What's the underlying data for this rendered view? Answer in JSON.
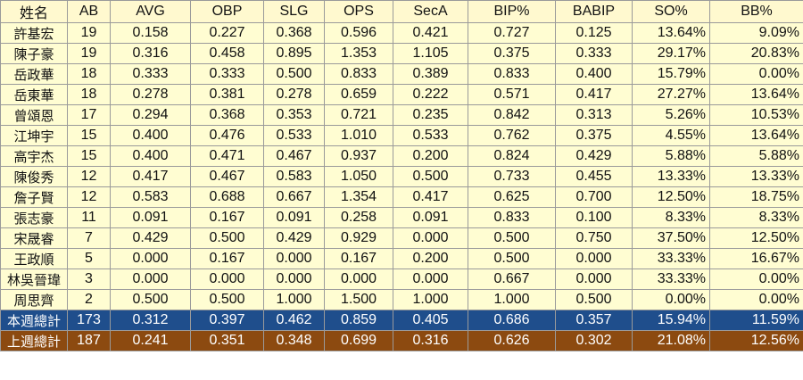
{
  "headers": [
    "姓名",
    "AB",
    "AVG",
    "OBP",
    "SLG",
    "OPS",
    "SecA",
    "BIP%",
    "BABIP",
    "SO%",
    "BB%"
  ],
  "rows": [
    {
      "name": "許基宏",
      "ab": "19",
      "avg": "0.158",
      "obp": "0.227",
      "slg": "0.368",
      "ops": "0.596",
      "seca": "0.421",
      "bip": "0.727",
      "babip": "0.125",
      "so": "13.64%",
      "bb": "9.09%"
    },
    {
      "name": "陳子豪",
      "ab": "19",
      "avg": "0.316",
      "obp": "0.458",
      "slg": "0.895",
      "ops": "1.353",
      "seca": "1.105",
      "bip": "0.375",
      "babip": "0.333",
      "so": "29.17%",
      "bb": "20.83%"
    },
    {
      "name": "岳政華",
      "ab": "18",
      "avg": "0.333",
      "obp": "0.333",
      "slg": "0.500",
      "ops": "0.833",
      "seca": "0.389",
      "bip": "0.833",
      "babip": "0.400",
      "so": "15.79%",
      "bb": "0.00%"
    },
    {
      "name": "岳東華",
      "ab": "18",
      "avg": "0.278",
      "obp": "0.381",
      "slg": "0.278",
      "ops": "0.659",
      "seca": "0.222",
      "bip": "0.571",
      "babip": "0.417",
      "so": "27.27%",
      "bb": "13.64%"
    },
    {
      "name": "曾頌恩",
      "ab": "17",
      "avg": "0.294",
      "obp": "0.368",
      "slg": "0.353",
      "ops": "0.721",
      "seca": "0.235",
      "bip": "0.842",
      "babip": "0.313",
      "so": "5.26%",
      "bb": "10.53%"
    },
    {
      "name": "江坤宇",
      "ab": "15",
      "avg": "0.400",
      "obp": "0.476",
      "slg": "0.533",
      "ops": "1.010",
      "seca": "0.533",
      "bip": "0.762",
      "babip": "0.375",
      "so": "4.55%",
      "bb": "13.64%"
    },
    {
      "name": "高宇杰",
      "ab": "15",
      "avg": "0.400",
      "obp": "0.471",
      "slg": "0.467",
      "ops": "0.937",
      "seca": "0.200",
      "bip": "0.824",
      "babip": "0.429",
      "so": "5.88%",
      "bb": "5.88%"
    },
    {
      "name": "陳俊秀",
      "ab": "12",
      "avg": "0.417",
      "obp": "0.467",
      "slg": "0.583",
      "ops": "1.050",
      "seca": "0.500",
      "bip": "0.733",
      "babip": "0.455",
      "so": "13.33%",
      "bb": "13.33%"
    },
    {
      "name": "詹子賢",
      "ab": "12",
      "avg": "0.583",
      "obp": "0.688",
      "slg": "0.667",
      "ops": "1.354",
      "seca": "0.417",
      "bip": "0.625",
      "babip": "0.700",
      "so": "12.50%",
      "bb": "18.75%"
    },
    {
      "name": "張志豪",
      "ab": "11",
      "avg": "0.091",
      "obp": "0.167",
      "slg": "0.091",
      "ops": "0.258",
      "seca": "0.091",
      "bip": "0.833",
      "babip": "0.100",
      "so": "8.33%",
      "bb": "8.33%"
    },
    {
      "name": "宋晟睿",
      "ab": "7",
      "avg": "0.429",
      "obp": "0.500",
      "slg": "0.429",
      "ops": "0.929",
      "seca": "0.000",
      "bip": "0.500",
      "babip": "0.750",
      "so": "37.50%",
      "bb": "12.50%"
    },
    {
      "name": "王政順",
      "ab": "5",
      "avg": "0.000",
      "obp": "0.167",
      "slg": "0.000",
      "ops": "0.167",
      "seca": "0.200",
      "bip": "0.500",
      "babip": "0.000",
      "so": "33.33%",
      "bb": "16.67%"
    },
    {
      "name": "林吳晉瑋",
      "ab": "3",
      "avg": "0.000",
      "obp": "0.000",
      "slg": "0.000",
      "ops": "0.000",
      "seca": "0.000",
      "bip": "0.667",
      "babip": "0.000",
      "so": "33.33%",
      "bb": "0.00%"
    },
    {
      "name": "周思齊",
      "ab": "2",
      "avg": "0.500",
      "obp": "0.500",
      "slg": "1.000",
      "ops": "1.500",
      "seca": "1.000",
      "bip": "1.000",
      "babip": "0.500",
      "so": "0.00%",
      "bb": "0.00%"
    }
  ],
  "totals": [
    {
      "name": "本週總計",
      "ab": "173",
      "avg": "0.312",
      "obp": "0.397",
      "slg": "0.462",
      "ops": "0.859",
      "seca": "0.405",
      "bip": "0.686",
      "babip": "0.357",
      "so": "15.94%",
      "bb": "11.59%"
    },
    {
      "name": "上週總計",
      "ab": "187",
      "avg": "0.241",
      "obp": "0.351",
      "slg": "0.348",
      "ops": "0.699",
      "seca": "0.316",
      "bip": "0.626",
      "babip": "0.302",
      "so": "21.08%",
      "bb": "12.56%"
    }
  ],
  "colors": {
    "header_bg": "#fff9cf",
    "row_bg": "#fffdd2",
    "this_week_bg": "#1f4e8c",
    "last_week_bg": "#8c4a10",
    "border": "#9a9a9a"
  }
}
